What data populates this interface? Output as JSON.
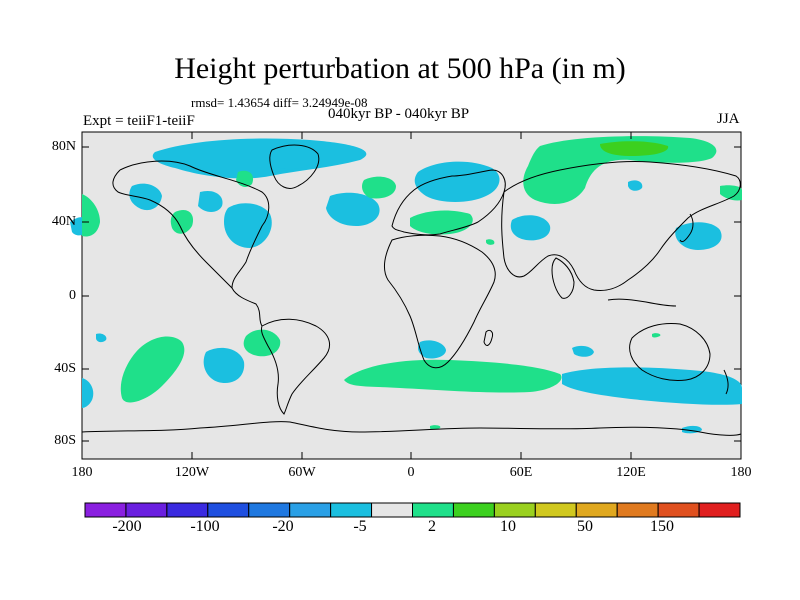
{
  "title": "Height perturbation at 500 hPa (in m)",
  "stats": "rmsd= 1.43654 diff= 3.24949e-08",
  "period": "040kyr BP - 040kyr BP",
  "experiment": "Expt = teiiF1-teiiF",
  "season": "JJA",
  "lat_ticks": [
    "80N",
    "40N",
    "0",
    "40S",
    "80S"
  ],
  "lon_ticks": [
    "180",
    "120W",
    "60W",
    "0",
    "60E",
    "120E",
    "180"
  ],
  "colorbar": {
    "labels": [
      "-200",
      "-100",
      "-20",
      "-5",
      "2",
      "10",
      "50",
      "150"
    ],
    "colors": [
      "#8a1fe0",
      "#6a1fe0",
      "#3a2ae0",
      "#1f4fe0",
      "#1f78e0",
      "#2aa0e6",
      "#1bbfe0",
      "#e6e6e6",
      "#1fe08a",
      "#3cd01f",
      "#9ad01f",
      "#d0c81f",
      "#e0a81f",
      "#e07a1f",
      "#e0501f",
      "#e01f1f"
    ]
  },
  "colors": {
    "background_field": "#e6e6e6",
    "negative_fill": "#1bbfe0",
    "positive_fill": "#1fe08a",
    "strong_positive_fill": "#3cd01f"
  }
}
